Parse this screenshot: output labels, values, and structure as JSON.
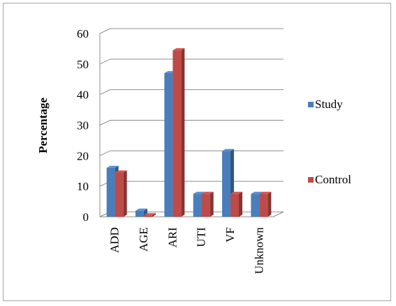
{
  "chart_data": {
    "type": "bar",
    "title": "",
    "xlabel": "",
    "ylabel": "Percentage",
    "ylim": [
      0,
      60
    ],
    "yticks": [
      0,
      10,
      20,
      30,
      40,
      50,
      60
    ],
    "grid": true,
    "legend_position": "right",
    "three_d": true,
    "categories": [
      "ADD",
      "AGE",
      "ARI",
      "UTI",
      "VF",
      "Unknown"
    ],
    "series": [
      {
        "name": "Study",
        "color": "#4a7ebb",
        "values": [
          16,
          2,
          47,
          7.5,
          21.5,
          7.5
        ]
      },
      {
        "name": "Control",
        "color": "#be4b48",
        "values": [
          14.5,
          0.5,
          54.5,
          7.5,
          7.5,
          7.5
        ]
      }
    ]
  }
}
